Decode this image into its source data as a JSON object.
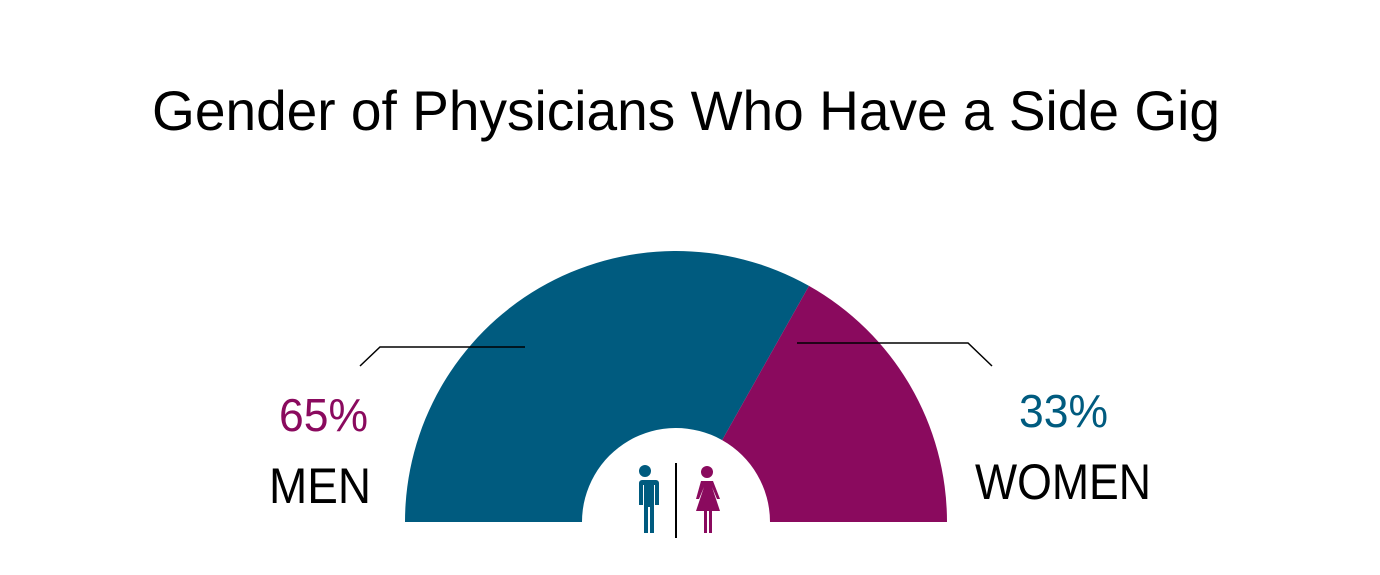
{
  "chart_data": {
    "type": "pie",
    "variant": "semi-donut",
    "title": "Gender of Physicians Who Have a Side Gig",
    "slices": [
      {
        "label": "MEN",
        "value": 65,
        "value_label": "65%",
        "color": "#005b7f",
        "label_color": "#8a0a5e"
      },
      {
        "label": "WOMEN",
        "value": 33,
        "value_label": "33%",
        "color": "#8a0a5e",
        "label_color": "#005b7f"
      }
    ],
    "icons": [
      "man-icon",
      "woman-icon"
    ]
  }
}
